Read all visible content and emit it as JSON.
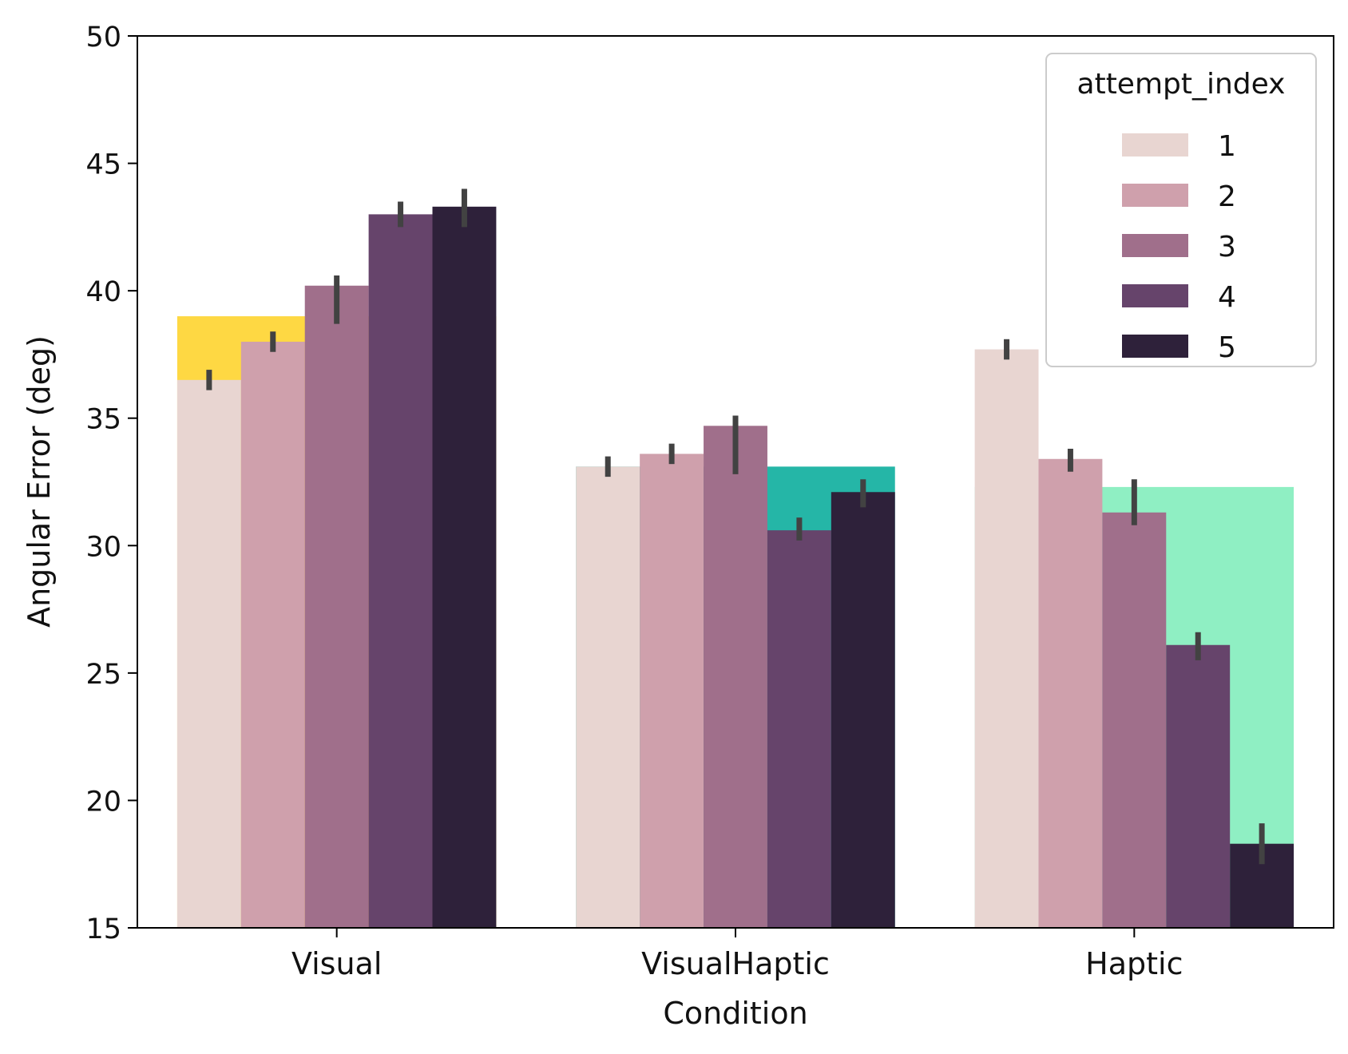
{
  "chart_data": {
    "type": "bar",
    "title": "",
    "xlabel": "Condition",
    "ylabel": "Angular Error (deg)",
    "categories": [
      "Visual",
      "VisualHaptic",
      "Haptic"
    ],
    "ylim": [
      15,
      50
    ],
    "yticks": [
      15,
      20,
      25,
      30,
      35,
      40,
      45,
      50
    ],
    "grid": false,
    "legend": {
      "title": "attempt_index",
      "placement": "top-right"
    },
    "series": [
      {
        "name": "1",
        "color": "#e8d5d1",
        "values": [
          36.5,
          33.1,
          37.7
        ],
        "ci": [
          [
            36.1,
            36.9
          ],
          [
            32.7,
            33.5
          ],
          [
            37.3,
            38.1
          ]
        ]
      },
      {
        "name": "2",
        "color": "#cfa0ac",
        "values": [
          38.0,
          33.6,
          33.4
        ],
        "ci": [
          [
            37.6,
            38.4
          ],
          [
            33.2,
            34.0
          ],
          [
            32.9,
            33.8
          ]
        ]
      },
      {
        "name": "3",
        "color": "#a06f8b",
        "values": [
          40.2,
          34.7,
          31.3
        ],
        "ci": [
          [
            38.7,
            40.6
          ],
          [
            32.8,
            35.1
          ],
          [
            30.8,
            32.6
          ]
        ]
      },
      {
        "name": "4",
        "color": "#66446b",
        "values": [
          43.0,
          30.6,
          26.1
        ],
        "ci": [
          [
            42.5,
            43.5
          ],
          [
            30.2,
            31.1
          ],
          [
            25.5,
            26.6
          ]
        ]
      },
      {
        "name": "5",
        "color": "#2e213a",
        "values": [
          43.3,
          32.1,
          18.3
        ],
        "ci": [
          [
            42.5,
            44.0
          ],
          [
            31.5,
            32.6
          ],
          [
            17.5,
            19.1
          ]
        ]
      }
    ],
    "overlays": [
      {
        "category": "Visual",
        "color": "#fed843",
        "value": 39.0
      },
      {
        "category": "VisualHaptic",
        "color": "#25b6a7",
        "value": 33.1
      },
      {
        "category": "Haptic",
        "color": "#8fefc3",
        "value": 32.3
      }
    ]
  }
}
